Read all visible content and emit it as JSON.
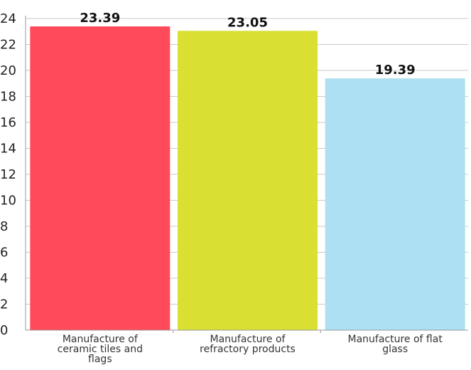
{
  "chart_data": {
    "type": "bar",
    "categories": [
      [
        "Manufacture of",
        "ceramic tiles and",
        "flags"
      ],
      [
        "Manufacture of",
        "refractory products"
      ],
      [
        "Manufacture of flat",
        "glass"
      ]
    ],
    "values": [
      23.39,
      23.05,
      19.39
    ],
    "value_labels": [
      "23.39",
      "23.05",
      "19.39"
    ],
    "colors": [
      "#ff4a5a",
      "#d9e032",
      "#ade0f2"
    ],
    "yticks": [
      "0",
      "2",
      "4",
      "6",
      "8",
      "10",
      "12",
      "14",
      "16",
      "18",
      "20",
      "22",
      "24"
    ],
    "ylim": [
      0,
      24
    ],
    "grid": true,
    "title": "",
    "xlabel": "",
    "ylabel": ""
  }
}
